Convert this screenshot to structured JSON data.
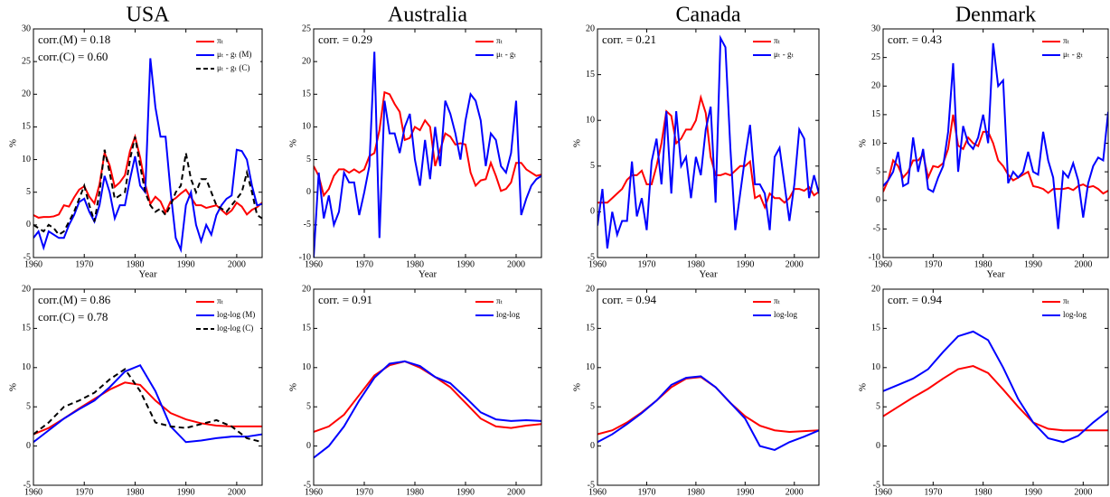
{
  "chart_data": [
    {
      "type": "line",
      "title": "USA",
      "annotations": [
        "corr.(M) = 0.18",
        "corr.(C) = 0.60"
      ],
      "xlabel": "Year",
      "ylabel": "%",
      "x": [
        1960,
        1961,
        1962,
        1963,
        1964,
        1965,
        1966,
        1967,
        1968,
        1969,
        1970,
        1971,
        1972,
        1973,
        1974,
        1975,
        1976,
        1977,
        1978,
        1979,
        1980,
        1981,
        1982,
        1983,
        1984,
        1985,
        1986,
        1987,
        1988,
        1989,
        1990,
        1991,
        1992,
        1993,
        1994,
        1995,
        1996,
        1997,
        1998,
        1999,
        2000,
        2001,
        2002,
        2003,
        2004,
        2005
      ],
      "series": [
        {
          "name": "πₜ",
          "color": "#ff0000",
          "values": [
            1.5,
            1.1,
            1.2,
            1.2,
            1.3,
            1.6,
            3.0,
            2.8,
            4.2,
            5.4,
            5.9,
            4.3,
            3.3,
            6.2,
            11,
            9.1,
            5.8,
            6.5,
            7.6,
            11.3,
            13.5,
            10.3,
            6.2,
            3.2,
            4.3,
            3.6,
            1.9,
            3.6,
            4.1,
            4.8,
            5.4,
            4.2,
            3.0,
            3.0,
            2.6,
            2.8,
            3.0,
            2.3,
            1.6,
            2.2,
            3.4,
            2.8,
            1.6,
            2.3,
            2.7,
            3.4
          ]
        },
        {
          "name": "μₜ - gₜ (M)",
          "color": "#0000ff",
          "values": [
            -2,
            -1,
            -3.5,
            -1,
            -1.5,
            -2,
            -2,
            0,
            1.5,
            3.5,
            4,
            2,
            0.5,
            3,
            7.5,
            5,
            1,
            3,
            3,
            7,
            10.5,
            6,
            5,
            25.5,
            18,
            13.5,
            13.5,
            5,
            -2,
            -3.8,
            3,
            5,
            0,
            -2.5,
            0,
            -1.5,
            1.5,
            3,
            4,
            4.5,
            11.5,
            11.3,
            10,
            6,
            3,
            3.2
          ]
        },
        {
          "name": "μₜ - gₜ (C)",
          "color": "#000000",
          "dashed": true,
          "values": [
            0,
            -0.5,
            -1,
            0,
            -0.5,
            -1.5,
            -1,
            0.5,
            2,
            4,
            6,
            3,
            0.5,
            5,
            11.5,
            8,
            4,
            4.5,
            5,
            10,
            13.5,
            9,
            5,
            3,
            2,
            2.5,
            1.5,
            3,
            5,
            6,
            11,
            7,
            5,
            7,
            7,
            5,
            3,
            2.5,
            2,
            3,
            4,
            5,
            8,
            5,
            1.5,
            1
          ]
        }
      ],
      "xlim": [
        1960,
        2005
      ],
      "xticks": [
        1960,
        1970,
        1980,
        1990,
        2000
      ],
      "ylim": [
        -5,
        30
      ],
      "yticks": [
        -5,
        0,
        5,
        10,
        15,
        20,
        25,
        30
      ]
    },
    {
      "type": "line",
      "title": "Australia",
      "annotations": [
        "corr. = 0.29"
      ],
      "xlabel": "Year",
      "ylabel": "%",
      "x": [
        1960,
        1961,
        1962,
        1963,
        1964,
        1965,
        1966,
        1967,
        1968,
        1969,
        1970,
        1971,
        1972,
        1973,
        1974,
        1975,
        1976,
        1977,
        1978,
        1979,
        1980,
        1981,
        1982,
        1983,
        1984,
        1985,
        1986,
        1987,
        1988,
        1989,
        1990,
        1991,
        1992,
        1993,
        1994,
        1995,
        1996,
        1997,
        1998,
        1999,
        2000,
        2001,
        2002,
        2003,
        2004,
        2005
      ],
      "series": [
        {
          "name": "πₜ",
          "color": "#ff0000",
          "values": [
            4,
            2.5,
            -0.5,
            0.5,
            2.5,
            3.5,
            3.5,
            3,
            3.5,
            3,
            3.5,
            5.5,
            6,
            9.5,
            15.3,
            15,
            13.5,
            12.3,
            8,
            8.3,
            10,
            9.5,
            11,
            10,
            4,
            6.5,
            9,
            8.5,
            7.3,
            7.5,
            7.3,
            3,
            1,
            1.8,
            2,
            4.5,
            2.5,
            0.2,
            0.5,
            1.5,
            4.5,
            4.5,
            3.5,
            3,
            2.5,
            2.7
          ]
        },
        {
          "name": "μₜ - gₜ",
          "color": "#0000ff",
          "values": [
            -10,
            3,
            -4,
            -0.5,
            -5,
            -3,
            3,
            1.5,
            1.5,
            -3.5,
            0,
            4,
            21.5,
            -7,
            14,
            9,
            9,
            6,
            10,
            12,
            5,
            1,
            8,
            2,
            10,
            4,
            14,
            12,
            9,
            5,
            11,
            15,
            14,
            11,
            4,
            9,
            8,
            4,
            3,
            6,
            14,
            -3.5,
            -1,
            1,
            2,
            2.5
          ]
        }
      ],
      "xlim": [
        1960,
        2005
      ],
      "xticks": [
        1960,
        1970,
        1980,
        1990,
        2000
      ],
      "ylim": [
        -10,
        25
      ],
      "yticks": [
        -10,
        -5,
        0,
        5,
        10,
        15,
        20,
        25
      ]
    },
    {
      "type": "line",
      "title": "Canada",
      "annotations": [
        "corr. = 0.21"
      ],
      "xlabel": "Year",
      "ylabel": "%",
      "x": [
        1960,
        1961,
        1962,
        1963,
        1964,
        1965,
        1966,
        1967,
        1968,
        1969,
        1970,
        1971,
        1972,
        1973,
        1974,
        1975,
        1976,
        1977,
        1978,
        1979,
        1980,
        1981,
        1982,
        1983,
        1984,
        1985,
        1986,
        1987,
        1988,
        1989,
        1990,
        1991,
        1992,
        1993,
        1994,
        1995,
        1996,
        1997,
        1998,
        1999,
        2000,
        2001,
        2002,
        2003,
        2004,
        2005
      ],
      "series": [
        {
          "name": "πₜ",
          "color": "#ff0000",
          "values": [
            1,
            1,
            1,
            1.5,
            2,
            2.5,
            3.5,
            4,
            4,
            4.5,
            3,
            3,
            5,
            7.5,
            11,
            10.5,
            7.5,
            8,
            9,
            9,
            10,
            12.5,
            10.8,
            6,
            4,
            4,
            4.2,
            4,
            4.5,
            5,
            5,
            5.5,
            1.5,
            1.8,
            0.5,
            2,
            1.5,
            1.5,
            1,
            1.5,
            2.5,
            2.5,
            2.3,
            2.7,
            1.8,
            2.2
          ]
        },
        {
          "name": "μₜ - gₜ",
          "color": "#0000ff",
          "values": [
            -1.5,
            2.5,
            -4,
            0,
            -2.5,
            -1,
            -1,
            5.5,
            -0.5,
            1.5,
            -2,
            5.5,
            8,
            3,
            11,
            2,
            11,
            5,
            6,
            1.5,
            6,
            4,
            9,
            11.5,
            1,
            19,
            18,
            7,
            -2,
            2,
            6,
            9.5,
            3,
            3,
            2,
            -2,
            6,
            7,
            3,
            -1,
            3,
            9,
            8,
            1.5,
            4,
            2
          ]
        }
      ],
      "xlim": [
        1960,
        2005
      ],
      "xticks": [
        1960,
        1970,
        1980,
        1990,
        2000
      ],
      "ylim": [
        -5,
        20
      ],
      "yticks": [
        -5,
        0,
        5,
        10,
        15,
        20
      ]
    },
    {
      "type": "line",
      "title": "Denmark",
      "annotations": [
        "corr. = 0.43"
      ],
      "xlabel": "Year",
      "ylabel": "%",
      "x": [
        1960,
        1961,
        1962,
        1963,
        1964,
        1965,
        1966,
        1967,
        1968,
        1969,
        1970,
        1971,
        1972,
        1973,
        1974,
        1975,
        1976,
        1977,
        1978,
        1979,
        1980,
        1981,
        1982,
        1983,
        1984,
        1985,
        1986,
        1987,
        1988,
        1989,
        1990,
        1991,
        1992,
        1993,
        1994,
        1995,
        1996,
        1997,
        1998,
        1999,
        2000,
        2001,
        2002,
        2003,
        2004,
        2005
      ],
      "series": [
        {
          "name": "πₜ",
          "color": "#ff0000",
          "values": [
            1.5,
            3.5,
            7,
            6,
            4,
            5,
            7,
            7,
            8,
            4,
            6,
            5.8,
            6.5,
            9,
            15,
            9.6,
            9,
            11,
            10,
            9.5,
            12,
            12,
            10,
            7,
            6,
            4.5,
            3.5,
            4,
            4.5,
            5,
            2.5,
            2.3,
            2,
            1.3,
            2,
            2,
            2,
            2.2,
            1.8,
            2.5,
            2.8,
            2.3,
            2.5,
            2,
            1.2,
            1.7
          ]
        },
        {
          "name": "μₜ - gₜ",
          "color": "#0000ff",
          "values": [
            2.5,
            3.5,
            5,
            8.5,
            2.5,
            3,
            11,
            5,
            9,
            2,
            1.5,
            4,
            6,
            12,
            24,
            5,
            13,
            10,
            9,
            11,
            15,
            10,
            27.5,
            20,
            21,
            3,
            5,
            4,
            5,
            8.5,
            5,
            4.5,
            12,
            7,
            4,
            -5,
            5,
            4,
            6.5,
            3.5,
            -3,
            3,
            6,
            7.5,
            7,
            15.5
          ]
        }
      ],
      "xlim": [
        1960,
        2005
      ],
      "xticks": [
        1960,
        1970,
        1980,
        1990,
        2000
      ],
      "ylim": [
        -10,
        30
      ],
      "yticks": [
        -10,
        -5,
        0,
        5,
        10,
        15,
        20,
        25,
        30
      ]
    },
    {
      "type": "line",
      "annotations": [
        "corr.(M) = 0.86",
        "corr.(C) = 0.78"
      ],
      "xlabel": "Year",
      "ylabel": "%",
      "x": [
        1960,
        1963,
        1966,
        1969,
        1972,
        1975,
        1978,
        1981,
        1984,
        1987,
        1990,
        1993,
        1996,
        1999,
        2002,
        2005
      ],
      "series": [
        {
          "name": "πₜ",
          "color": "#ff0000",
          "values": [
            1.5,
            2.3,
            3.5,
            4.8,
            6,
            7.2,
            8.1,
            7.8,
            5.8,
            4.2,
            3.4,
            2.9,
            2.6,
            2.5,
            2.5,
            2.5
          ]
        },
        {
          "name": "log-log (M)",
          "color": "#0000ff",
          "values": [
            0.5,
            2,
            3.5,
            4.7,
            5.8,
            7.5,
            9.5,
            10.3,
            7,
            2.5,
            0.5,
            0.7,
            1.0,
            1.2,
            1.2,
            1.5
          ]
        },
        {
          "name": "log-log (C)",
          "color": "#000000",
          "dashed": true,
          "values": [
            1.5,
            3,
            5,
            5.8,
            6.8,
            8.5,
            9.8,
            7,
            3,
            2.5,
            2.3,
            2.8,
            3.3,
            2.5,
            1,
            0.5
          ]
        }
      ],
      "xlim": [
        1960,
        2005
      ],
      "xticks": [
        1960,
        1970,
        1980,
        1990,
        2000
      ],
      "ylim": [
        -5,
        20
      ],
      "yticks": [
        -5,
        0,
        5,
        10,
        15,
        20
      ]
    },
    {
      "type": "line",
      "annotations": [
        "corr. = 0.91"
      ],
      "xlabel": "Year",
      "ylabel": "%",
      "x": [
        1960,
        1963,
        1966,
        1969,
        1972,
        1975,
        1978,
        1981,
        1984,
        1987,
        1990,
        1993,
        1996,
        1999,
        2002,
        2005
      ],
      "series": [
        {
          "name": "πₜ",
          "color": "#ff0000",
          "values": [
            1.8,
            2.5,
            4,
            6.5,
            9,
            10.3,
            10.8,
            10,
            8.8,
            7.5,
            5.5,
            3.5,
            2.5,
            2.3,
            2.6,
            2.8
          ]
        },
        {
          "name": "log-log",
          "color": "#0000ff",
          "values": [
            -1.5,
            0,
            2.5,
            5.8,
            8.7,
            10.5,
            10.8,
            10.2,
            8.8,
            8,
            6.2,
            4.3,
            3.4,
            3.2,
            3.3,
            3.2
          ]
        }
      ],
      "xlim": [
        1960,
        2005
      ],
      "xticks": [
        1960,
        1970,
        1980,
        1990,
        2000
      ],
      "ylim": [
        -5,
        20
      ],
      "yticks": [
        -5,
        0,
        5,
        10,
        15,
        20
      ]
    },
    {
      "type": "line",
      "annotations": [
        "corr. = 0.94"
      ],
      "xlabel": "Year",
      "ylabel": "%",
      "x": [
        1960,
        1963,
        1966,
        1969,
        1972,
        1975,
        1978,
        1981,
        1984,
        1987,
        1990,
        1993,
        1996,
        1999,
        2002,
        2005
      ],
      "series": [
        {
          "name": "πₜ",
          "color": "#ff0000",
          "values": [
            1.5,
            2,
            3,
            4.3,
            5.8,
            7.5,
            8.6,
            8.8,
            7.5,
            5.5,
            3.8,
            2.6,
            2,
            1.8,
            1.9,
            2
          ]
        },
        {
          "name": "log-log",
          "color": "#0000ff",
          "values": [
            0.5,
            1.5,
            2.8,
            4.2,
            5.8,
            7.8,
            8.7,
            8.9,
            7.5,
            5.5,
            3.5,
            0,
            -0.5,
            0.5,
            1.2,
            2
          ]
        }
      ],
      "xlim": [
        1960,
        2005
      ],
      "xticks": [
        1960,
        1970,
        1980,
        1990,
        2000
      ],
      "ylim": [
        -5,
        20
      ],
      "yticks": [
        -5,
        0,
        5,
        10,
        15,
        20
      ]
    },
    {
      "type": "line",
      "annotations": [
        "corr. = 0.94"
      ],
      "xlabel": "Year",
      "ylabel": "%",
      "x": [
        1960,
        1963,
        1966,
        1969,
        1972,
        1975,
        1978,
        1981,
        1984,
        1987,
        1990,
        1993,
        1996,
        1999,
        2002,
        2005
      ],
      "series": [
        {
          "name": "πₜ",
          "color": "#ff0000",
          "values": [
            3.8,
            5,
            6.2,
            7.3,
            8.6,
            9.8,
            10.2,
            9.3,
            7.2,
            5,
            3,
            2.2,
            2,
            2,
            2,
            2
          ]
        },
        {
          "name": "log-log",
          "color": "#0000ff",
          "values": [
            7,
            7.8,
            8.6,
            9.8,
            12,
            14,
            14.6,
            13.5,
            10,
            6,
            3,
            1,
            0.5,
            1.3,
            3,
            4.5
          ]
        }
      ],
      "xlim": [
        1960,
        2005
      ],
      "xticks": [
        1960,
        1970,
        1980,
        1990,
        2000
      ],
      "ylim": [
        -5,
        20
      ],
      "yticks": [
        -5,
        0,
        5,
        10,
        15,
        20
      ]
    }
  ]
}
